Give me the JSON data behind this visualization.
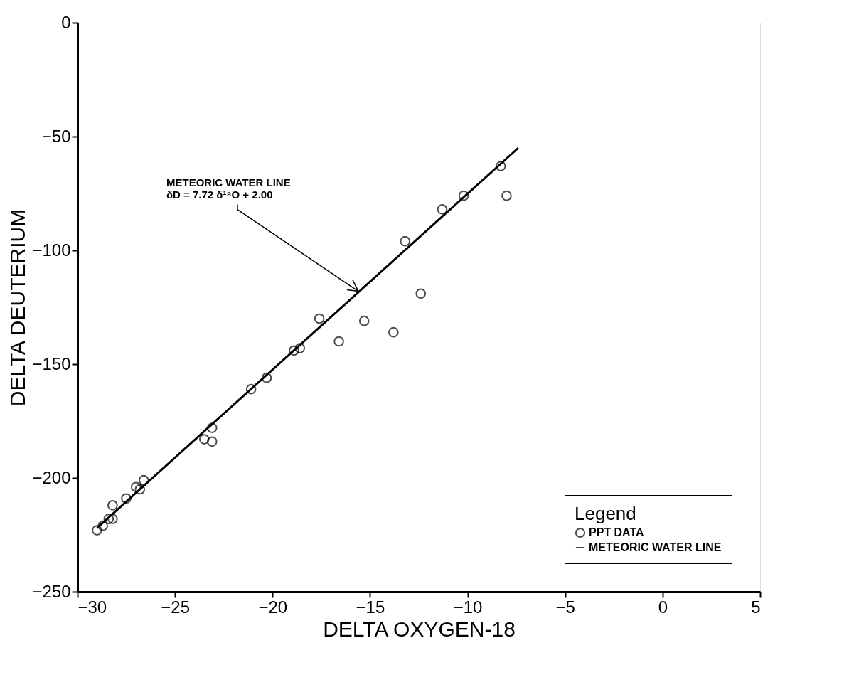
{
  "chart_data": {
    "type": "scatter",
    "xlabel": "DELTA OXYGEN-18",
    "ylabel": "DELTA DEUTERIUM",
    "xlim": [
      -30,
      5
    ],
    "ylim": [
      -250,
      0
    ],
    "xticks": [
      -30,
      -25,
      -20,
      -15,
      -10,
      -5,
      0,
      5
    ],
    "yticks": [
      -250,
      -200,
      -150,
      -100,
      -50,
      0
    ],
    "grid": false,
    "legend": "bottom right",
    "legend_title": "Legend",
    "series": [
      {
        "name": "PPT DATA",
        "marker": "circle",
        "color": "#000000",
        "x": [
          -8.3,
          -8.0,
          -10.2,
          -11.3,
          -13.2,
          -12.4,
          -15.3,
          -17.6,
          -13.8,
          -16.6,
          -18.9,
          -18.6,
          -20.3,
          -21.1,
          -23.1,
          -23.5,
          -23.1,
          -26.6,
          -26.8,
          -27.0,
          -27.5,
          -28.2,
          -28.4,
          -28.2,
          -28.7,
          -29.0
        ],
        "values": [
          -63,
          -76,
          -76,
          -82,
          -96,
          -119,
          -131,
          -130,
          -136,
          -140,
          -144,
          -143,
          -156,
          -161,
          -178,
          -183,
          -184,
          -201,
          -205,
          -204,
          -209,
          -212,
          -218,
          -218,
          -221,
          -223
        ]
      },
      {
        "name": "METEORIC WATER LINE",
        "type": "line",
        "marker": "none",
        "line_style": "solid",
        "color": "#000000",
        "x": [
          -29.0,
          -7.4
        ],
        "values": [
          -222,
          -55
        ]
      }
    ],
    "annotations": [
      {
        "text": "METEORIC WATER LINE\nδD = 7.72 δ¹⁸O + 2.00",
        "x": -15.6,
        "y": -118
      }
    ]
  }
}
